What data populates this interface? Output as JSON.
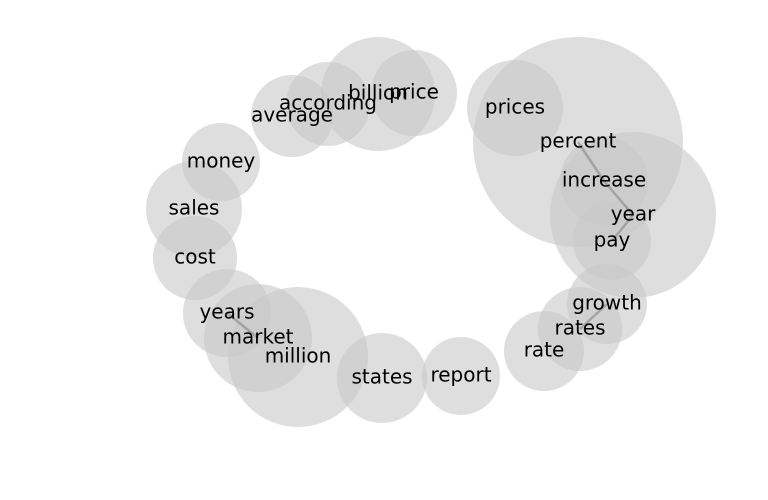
{
  "words": [
    {
      "word": "price"
    },
    {
      "word": "billion"
    },
    {
      "word": "according"
    },
    {
      "word": "average"
    },
    {
      "word": "money"
    },
    {
      "word": "sales"
    },
    {
      "word": "cost"
    },
    {
      "word": "years"
    },
    {
      "word": "market"
    },
    {
      "word": "million"
    },
    {
      "word": "states"
    },
    {
      "word": "report"
    },
    {
      "word": "rate"
    },
    {
      "word": "rates"
    },
    {
      "word": "growth"
    },
    {
      "word": "pay"
    },
    {
      "word": "year"
    },
    {
      "word": "increase"
    },
    {
      "word": "percent"
    },
    {
      "word": "prices"
    }
  ],
  "links": [
    {
      "from": "percent",
      "to": "increase"
    },
    {
      "from": "increase",
      "to": "year"
    },
    {
      "from": "year",
      "to": "pay"
    },
    {
      "from": "growth",
      "to": "rates"
    },
    {
      "from": "years",
      "to": "market"
    }
  ]
}
